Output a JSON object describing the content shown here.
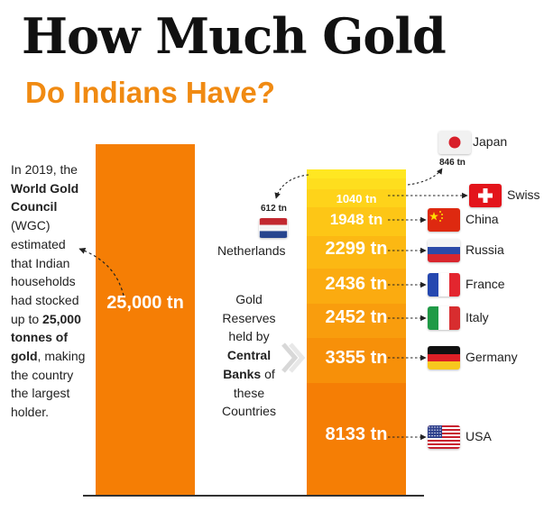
{
  "title": "How Much Gold",
  "subtitle": "Do Indians Have?",
  "side_text": {
    "part1": "In 2019, the ",
    "bold1": "World Gold Council",
    "part2": " (WGC) estimated that Indian households had stocked up to ",
    "bold2": "25,000 tonnes of gold",
    "part3": ", making the country the largest holder."
  },
  "middle_text": {
    "part1": "Gold Reserves held by ",
    "bold": "Central Banks",
    "part2": " of these Countries"
  },
  "colors": {
    "accent": "#f57e05",
    "title": "#111111",
    "subtitle": "#f08a12"
  },
  "chart_data": {
    "type": "bar",
    "title": "How Much Gold",
    "subtitle": "Do Indians Have?",
    "unit": "tn",
    "india": {
      "value": 25000,
      "label": "25,000 tn"
    },
    "stack_order_bottom_to_top": [
      "USA",
      "Germany",
      "Italy",
      "France",
      "Russia",
      "China",
      "Swiss",
      "Netherlands",
      "Japan"
    ],
    "series": [
      {
        "country": "USA",
        "value": 8133,
        "label": "8133 tn",
        "color": "#f57e05",
        "flag": "usa-flag"
      },
      {
        "country": "Germany",
        "value": 3355,
        "label": "3355 tn",
        "color": "#f79009",
        "flag": "germany-flag"
      },
      {
        "country": "Italy",
        "value": 2452,
        "label": "2452 tn",
        "color": "#f99d0d",
        "flag": "italy-flag"
      },
      {
        "country": "France",
        "value": 2436,
        "label": "2436 tn",
        "color": "#fbab10",
        "flag": "france-flag"
      },
      {
        "country": "Russia",
        "value": 2299,
        "label": "2299 tn",
        "color": "#fcb813",
        "flag": "russia-flag"
      },
      {
        "country": "China",
        "value": 1948,
        "label": "1948 tn",
        "color": "#fdc616",
        "flag": "china-flag"
      },
      {
        "country": "Swiss",
        "value": 1040,
        "label": "1040 tn",
        "color": "#fed31a",
        "flag": "swiss-flag"
      },
      {
        "country": "Netherlands",
        "value": 612,
        "label": "612 tn",
        "color": "#fede1e",
        "flag": "netherlands-flag"
      },
      {
        "country": "Japan",
        "value": 846,
        "label": "846 tn",
        "color": "#ffe722",
        "flag": "japan-flag"
      }
    ]
  }
}
